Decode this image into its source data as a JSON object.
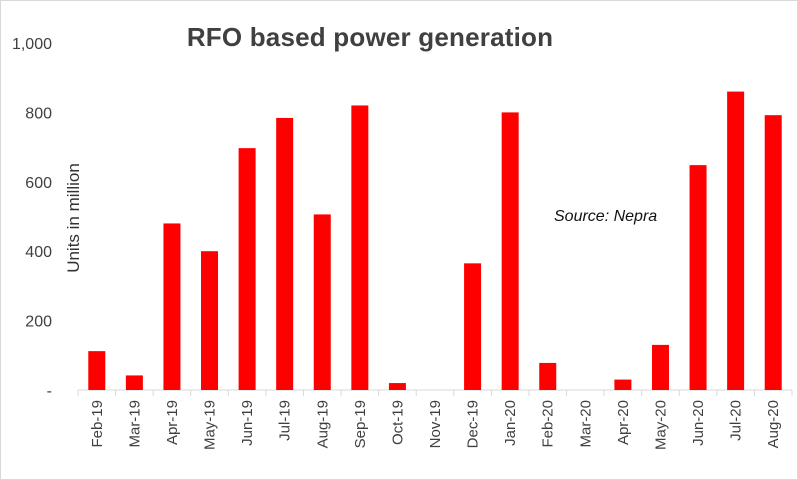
{
  "chart_data": {
    "type": "bar",
    "title": "RFO based power generation",
    "ylabel": "Units in million",
    "xlabel": "",
    "ylim": [
      0,
      1000
    ],
    "ytick_values": [
      0,
      200,
      400,
      600,
      800,
      1000
    ],
    "ytick_labels": [
      "-",
      "200",
      "400",
      "600",
      "800",
      "1,000"
    ],
    "grid": false,
    "legend": "none",
    "bar_color": "#ff0000",
    "categories": [
      "Feb-19",
      "Mar-19",
      "Apr-19",
      "May-19",
      "Jun-19",
      "Jul-19",
      "Aug-19",
      "Sep-19",
      "Oct-19",
      "Nov-19",
      "Dec-19",
      "Jan-20",
      "Feb-20",
      "Mar-20",
      "Apr-20",
      "May-20",
      "Jun-20",
      "Jul-20",
      "Aug-20"
    ],
    "values": [
      112,
      42,
      480,
      400,
      697,
      784,
      506,
      820,
      20,
      0,
      365,
      800,
      78,
      0,
      30,
      130,
      648,
      860,
      792
    ],
    "annotation": "Source: Nepra"
  }
}
